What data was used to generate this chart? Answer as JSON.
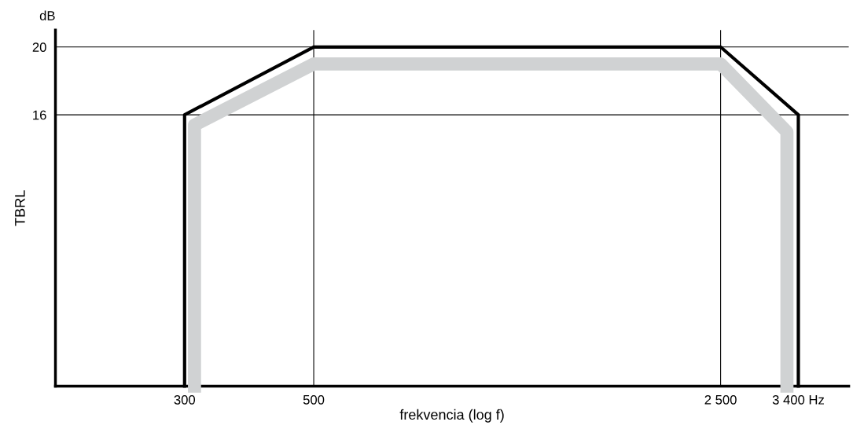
{
  "chart_data": {
    "type": "line",
    "xlabel": "frekvencia (log f)",
    "ylabel": "TBRL",
    "annotations": [
      "dB"
    ],
    "log": "x",
    "xlim": [
      180,
      4150
    ],
    "ylim": [
      0,
      21
    ],
    "xticks": [
      300,
      500,
      {
        "value": 2500,
        "label": "2 500"
      },
      {
        "value": 3400,
        "label": "3 400 Hz"
      }
    ],
    "yticks": [
      16,
      20
    ],
    "grid": false,
    "marker": "none",
    "line_style": "solid",
    "series": [
      {
        "color": "#d0d2d3",
        "x": [
          312,
          312,
          500,
          2500,
          3250,
          3250
        ],
        "values": [
          0,
          15.4,
          19,
          19,
          15,
          0
        ]
      },
      {
        "color": "#000000",
        "x": [
          300,
          300,
          500,
          2500,
          3400,
          3400
        ],
        "values": [
          0,
          16,
          20,
          20,
          16,
          0
        ]
      }
    ],
    "ref_lines": [
      {
        "axis": "y",
        "value": 20,
        "color": "#000000"
      },
      {
        "axis": "y",
        "value": 16,
        "color": "#000000"
      },
      {
        "axis": "x",
        "value": 500,
        "color": "#000000"
      },
      {
        "axis": "x",
        "value": 2500,
        "color": "#000000"
      }
    ]
  }
}
